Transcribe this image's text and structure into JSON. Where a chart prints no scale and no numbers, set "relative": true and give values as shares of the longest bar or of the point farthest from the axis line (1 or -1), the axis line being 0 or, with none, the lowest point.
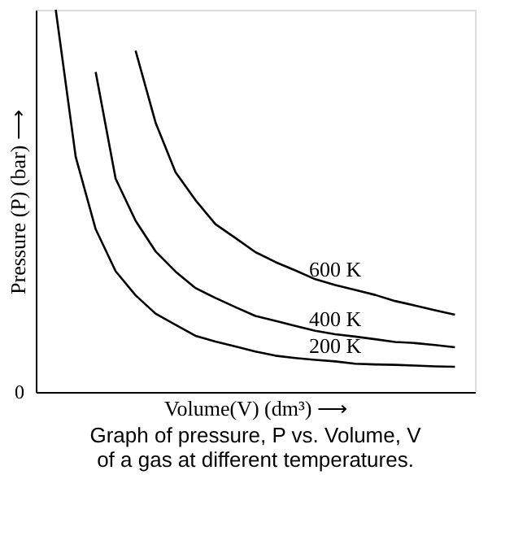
{
  "chart_data": {
    "type": "line",
    "relative": true,
    "xlabel": "Volume(V) (dm³) ⟶",
    "ylabel": "Pressure (P) (bar) ⟶",
    "grid": false,
    "marker": "none",
    "line_style": "solid",
    "categories": [
      null,
      null,
      null,
      null,
      null,
      null,
      null,
      null,
      null,
      null,
      null,
      null,
      null,
      null,
      null,
      null,
      null,
      null,
      null,
      null,
      null
    ],
    "series": [
      {
        "name": "600 K",
        "color": "#000000",
        "values": [
          null,
          null,
          null,
          null,
          0.893,
          0.705,
          0.575,
          0.502,
          0.439,
          0.403,
          0.366,
          0.34,
          0.318,
          0.295,
          0.28,
          0.267,
          0.254,
          0.238,
          0.226,
          0.214,
          0.202
        ]
      },
      {
        "name": "400 K",
        "color": "#000000",
        "values": [
          null,
          null,
          0.837,
          0.558,
          0.448,
          0.368,
          0.315,
          0.272,
          0.246,
          0.222,
          0.199,
          0.186,
          0.173,
          0.16,
          0.151,
          0.145,
          0.138,
          0.131,
          0.128,
          0.123,
          0.117
        ]
      },
      {
        "name": "200 K",
        "color": "#000000",
        "values": [
          1,
          0.615,
          0.426,
          0.316,
          0.253,
          0.205,
          0.176,
          0.147,
          0.132,
          0.119,
          0.106,
          0.095,
          0.089,
          0.084,
          0.08,
          0.074,
          0.072,
          0.071,
          0.069,
          0.067,
          0.066
        ]
      }
    ],
    "annotations": [
      "0",
      "Graph of pressure, P vs. Volume, V of a gas at different temperatures."
    ]
  }
}
